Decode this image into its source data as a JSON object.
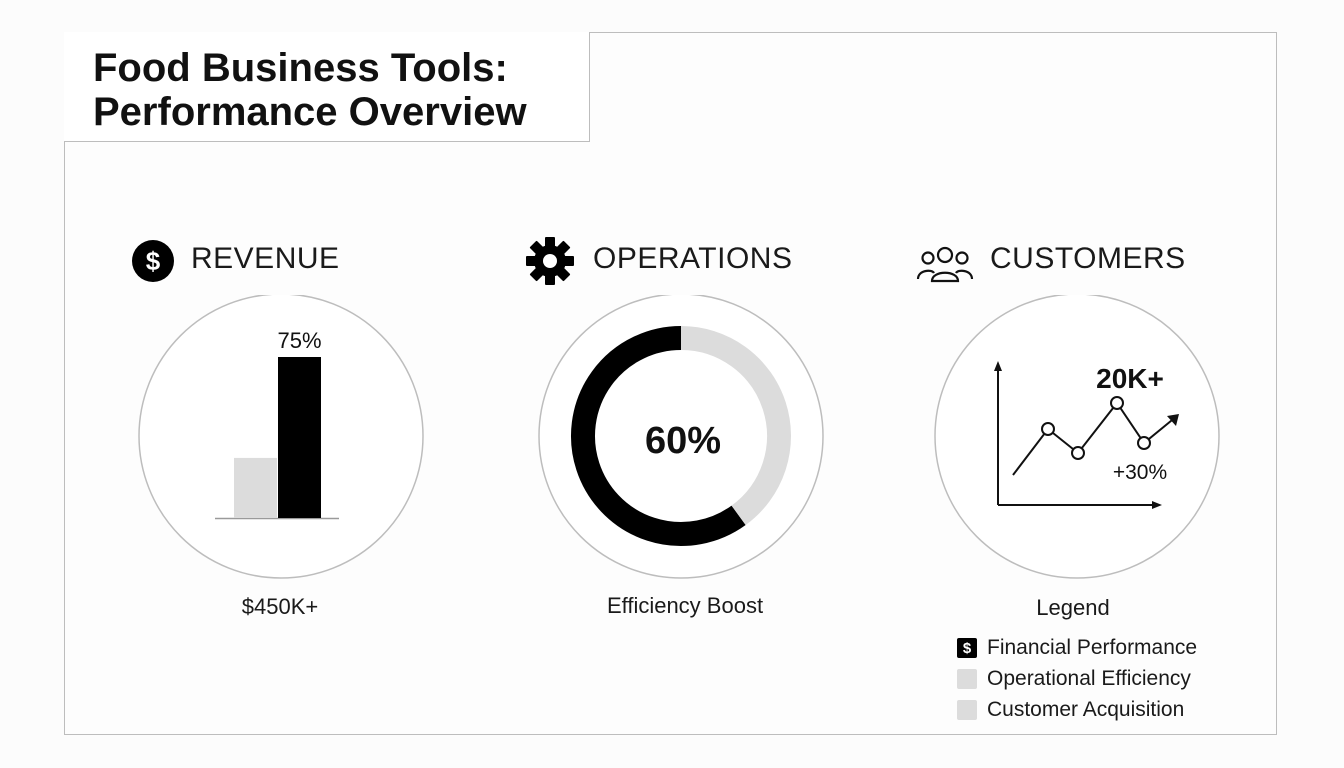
{
  "title": {
    "line1": "Food Business Tools:",
    "line2": "Performance Overview"
  },
  "colors": {
    "primary": "#000000",
    "secondary": "#dcdcdc",
    "circle_border": "#bdbdbd"
  },
  "panels": {
    "revenue": {
      "label": "REVENUE",
      "icon": "dollar-circle-icon",
      "caption": "$450K+"
    },
    "operations": {
      "label": "OPERATIONS",
      "icon": "gear-icon",
      "caption": "Efficiency Boost"
    },
    "customers": {
      "label": "CUSTOMERS",
      "icon": "users-icon"
    }
  },
  "chart_data": [
    {
      "type": "bar",
      "categories": [
        "",
        ""
      ],
      "values": [
        28,
        75
      ],
      "bar_colors": [
        "#dcdcdc",
        "#000000"
      ],
      "value_labels": [
        "",
        "75%"
      ],
      "ylim": [
        0,
        75
      ]
    },
    {
      "type": "pie",
      "style": "donut",
      "values": [
        60,
        40
      ],
      "slice_colors": [
        "#000000",
        "#dcdcdc"
      ],
      "center_label": "60%"
    },
    {
      "type": "line",
      "x": [
        1,
        2,
        3,
        4
      ],
      "y": [
        3.8,
        2.6,
        5.1,
        3.1
      ],
      "ylim": [
        0,
        7
      ],
      "annotations": [
        "20K+",
        "+30%"
      ]
    }
  ],
  "legend": {
    "title": "Legend",
    "items": [
      {
        "label": "Financial Performance",
        "color": "#000000",
        "icon": "dollar-icon"
      },
      {
        "label": "Operational Efficiency",
        "color": "#dcdcdc"
      },
      {
        "label": "Customer Acquisition",
        "color": "#dcdcdc"
      }
    ]
  }
}
